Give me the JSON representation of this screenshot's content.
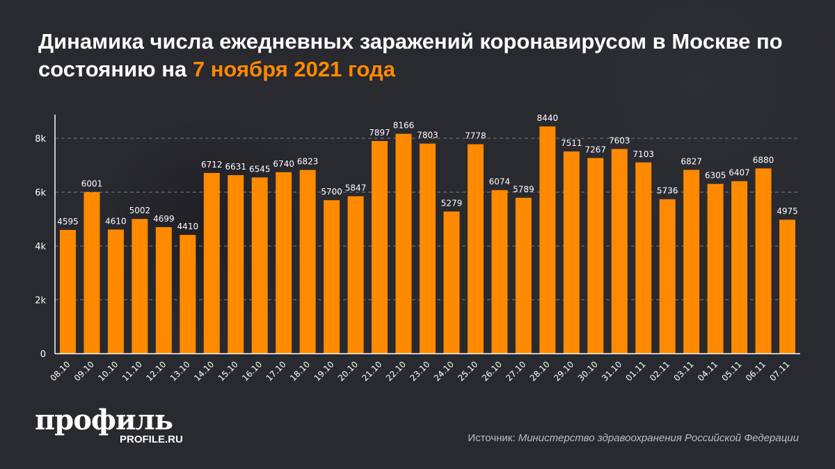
{
  "title": {
    "main": "Динамика числа ежедневных заражений коронавирусом в Москве по состоянию на",
    "highlight": "7 ноября 2021 года"
  },
  "colors": {
    "bar": "#ff8a00",
    "background": "#292930",
    "highlight": "#ff8a00"
  },
  "chart_data": {
    "type": "bar",
    "title": "Динамика числа ежедневных заражений коронавирусом в Москве по состоянию на 7 ноября 2021 года",
    "categories": [
      "08.10",
      "09.10",
      "10.10",
      "11.10",
      "12.10",
      "13.10",
      "14.10",
      "15.10",
      "16.10",
      "17.10",
      "18.10",
      "19.10",
      "20.10",
      "21.10",
      "22.10",
      "23.10",
      "24.10",
      "25.10",
      "26.10",
      "27.10",
      "28.10",
      "29.10",
      "30.10",
      "31.10",
      "01.11",
      "02.11",
      "03.11",
      "04.11",
      "05.11",
      "06.11",
      "07.11"
    ],
    "values": [
      4595,
      6001,
      4610,
      5002,
      4699,
      4410,
      6712,
      6631,
      6545,
      6740,
      6823,
      5700,
      5847,
      7897,
      8166,
      7803,
      5279,
      7778,
      6074,
      5789,
      8440,
      7511,
      7267,
      7603,
      7103,
      5736,
      6827,
      6305,
      6407,
      6880,
      4975
    ],
    "yticks": [
      {
        "value": 0,
        "label": "0"
      },
      {
        "value": 2000,
        "label": "2k"
      },
      {
        "value": 4000,
        "label": "4k"
      },
      {
        "value": 6000,
        "label": "6k"
      },
      {
        "value": 8000,
        "label": "8k"
      }
    ],
    "ylim": [
      0,
      8000
    ],
    "grid": "horizontal-dashed",
    "data_labels": true,
    "xlabel": "",
    "ylabel": ""
  },
  "logo": {
    "name": "профиль",
    "site": "PROFILE.RU"
  },
  "source": {
    "label": "Источник:",
    "value": "Министерство здравоохранения Российской Федерации"
  }
}
